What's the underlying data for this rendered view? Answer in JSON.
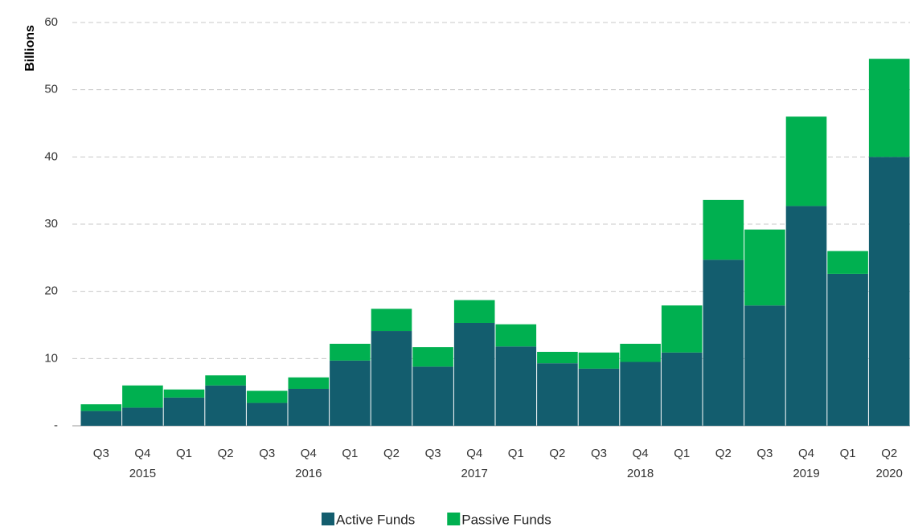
{
  "chart_data": {
    "type": "stacked_bar",
    "y_axis_label": "Billions",
    "categories": [
      "Q3",
      "Q4",
      "Q1",
      "Q2",
      "Q3",
      "Q4",
      "Q1",
      "Q2",
      "Q3",
      "Q4",
      "Q1",
      "Q2",
      "Q3",
      "Q4",
      "Q1",
      "Q2",
      "Q3",
      "Q4",
      "Q1",
      "Q2"
    ],
    "year_labels": [
      null,
      "2015",
      null,
      null,
      null,
      "2016",
      null,
      null,
      null,
      "2017",
      null,
      null,
      null,
      "2018",
      null,
      null,
      null,
      "2019",
      null,
      "2020"
    ],
    "series": [
      {
        "name": "Active Funds",
        "color": "#135d6e",
        "values": [
          2.2,
          2.7,
          4.2,
          6.0,
          3.4,
          5.5,
          9.7,
          14.1,
          8.8,
          15.3,
          11.8,
          9.3,
          8.5,
          9.5,
          10.9,
          24.7,
          17.9,
          32.7,
          22.6,
          40.0
        ]
      },
      {
        "name": "Passive Funds",
        "color": "#00b050",
        "values": [
          1.0,
          3.3,
          1.2,
          1.5,
          1.8,
          1.7,
          2.5,
          3.3,
          2.9,
          3.4,
          3.3,
          1.7,
          2.4,
          2.7,
          7.0,
          8.9,
          11.3,
          13.3,
          3.4,
          14.6
        ]
      }
    ],
    "ylim": [
      0,
      60
    ],
    "yticks": [
      {
        "value": 0,
        "label": "-"
      },
      10,
      20,
      30,
      40,
      50,
      60
    ],
    "grid": true,
    "legend": "bottom"
  }
}
